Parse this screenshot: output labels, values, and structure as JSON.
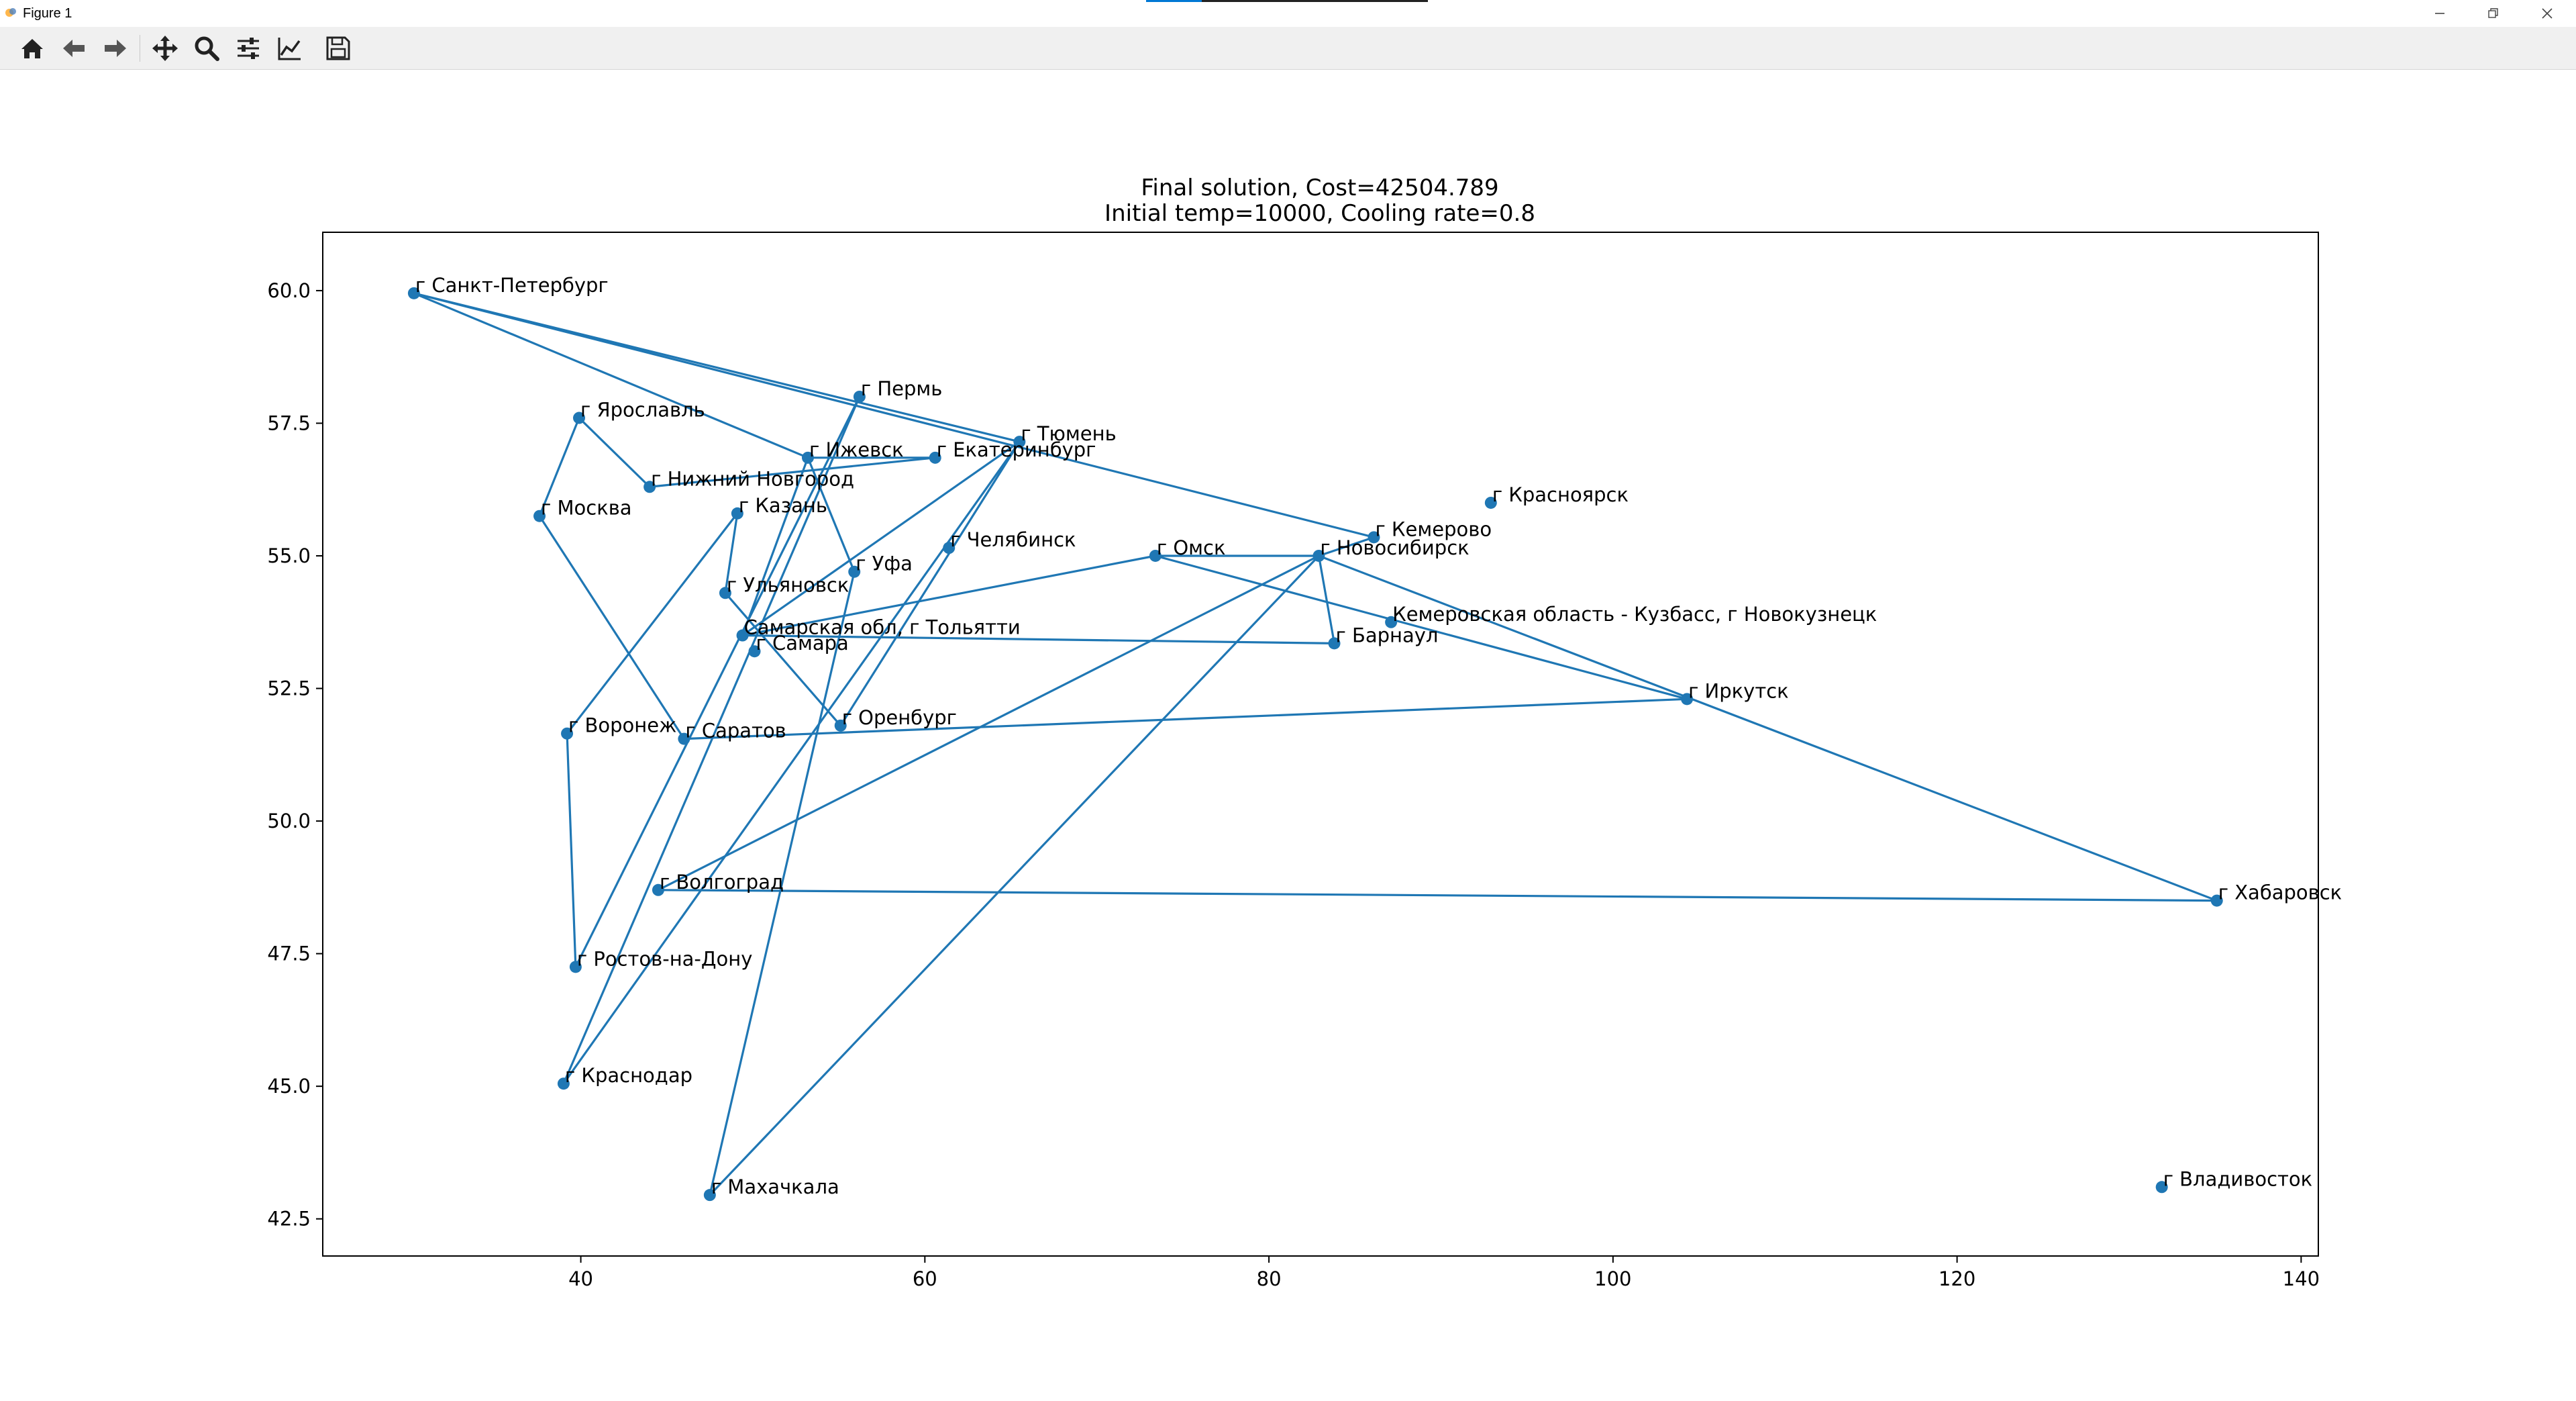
{
  "window": {
    "title": "Figure 1"
  },
  "toolbar": {
    "tools": [
      {
        "name": "home-icon"
      },
      {
        "name": "back-arrow-icon"
      },
      {
        "name": "forward-arrow-icon"
      },
      {
        "name": "pan-move-icon"
      },
      {
        "name": "zoom-magnifier-icon"
      },
      {
        "name": "configure-subplots-icon"
      },
      {
        "name": "edit-axis-icon"
      },
      {
        "name": "save-floppy-icon"
      }
    ]
  },
  "chart_data": {
    "type": "line",
    "title": "Final solution, Cost=42504.789",
    "subtitle": "Initial temp=10000, Cooling rate=0.8",
    "xlabel": "",
    "ylabel": "",
    "xlim": [
      25,
      141
    ],
    "ylim": [
      41.8,
      61.1
    ],
    "xticks": [
      40,
      60,
      80,
      100,
      120,
      140
    ],
    "yticks": [
      42.5,
      45.0,
      47.5,
      50.0,
      52.5,
      55.0,
      57.5,
      60.0
    ],
    "grid": false,
    "legend": "none",
    "color": "#1f77b4",
    "points": [
      {
        "name": "г Санкт-Петербург",
        "x": 30.3,
        "y": 59.95
      },
      {
        "name": "г Пермь",
        "x": 56.2,
        "y": 58.0
      },
      {
        "name": "г Ярославль",
        "x": 39.9,
        "y": 57.6
      },
      {
        "name": "г Ижевск",
        "x": 53.2,
        "y": 56.85
      },
      {
        "name": "г Екатеринбург",
        "x": 60.6,
        "y": 56.85
      },
      {
        "name": "г Тюмень",
        "x": 65.5,
        "y": 57.15
      },
      {
        "name": "г Нижний Новгород",
        "x": 44.0,
        "y": 56.3
      },
      {
        "name": "г Москва",
        "x": 37.6,
        "y": 55.75
      },
      {
        "name": "г Казань",
        "x": 49.1,
        "y": 55.8
      },
      {
        "name": "г Кемерово",
        "x": 86.1,
        "y": 55.35
      },
      {
        "name": "г Красноярск",
        "x": 92.9,
        "y": 56.0
      },
      {
        "name": "г Челябинск",
        "x": 61.4,
        "y": 55.15
      },
      {
        "name": "г Омск",
        "x": 73.4,
        "y": 55.0
      },
      {
        "name": "г Новосибирск",
        "x": 82.9,
        "y": 55.0
      },
      {
        "name": "г Уфа",
        "x": 55.9,
        "y": 54.7
      },
      {
        "name": "г Ульяновск",
        "x": 48.4,
        "y": 54.3
      },
      {
        "name": "Кемеровская область - Кузбасс, г Новокузнецк",
        "x": 87.1,
        "y": 53.75
      },
      {
        "name": "Самарская обл, г Тольятти",
        "x": 49.4,
        "y": 53.5
      },
      {
        "name": "г Барнаул",
        "x": 83.8,
        "y": 53.35
      },
      {
        "name": "г Самара",
        "x": 50.1,
        "y": 53.2
      },
      {
        "name": "г Иркутск",
        "x": 104.3,
        "y": 52.3
      },
      {
        "name": "г Оренбург",
        "x": 55.1,
        "y": 51.8
      },
      {
        "name": "г Воронеж",
        "x": 39.2,
        "y": 51.65
      },
      {
        "name": "г Саратов",
        "x": 46.0,
        "y": 51.55
      },
      {
        "name": "г Хабаровск",
        "x": 135.1,
        "y": 48.5
      },
      {
        "name": "г Волгоград",
        "x": 44.5,
        "y": 48.7
      },
      {
        "name": "г Ростов-на-Дону",
        "x": 39.7,
        "y": 47.25
      },
      {
        "name": "г Краснодар",
        "x": 39.0,
        "y": 45.05
      },
      {
        "name": "г Махачкала",
        "x": 47.5,
        "y": 42.95
      },
      {
        "name": "г Владивосток",
        "x": 131.9,
        "y": 43.1
      }
    ],
    "route": [
      "г Санкт-Петербург",
      "г Кемерово",
      "г Новосибирск",
      "г Волгоград",
      "г Хабаровск",
      "г Новосибирск",
      "г Барнаул",
      "Самарская обл, г Тольятти",
      "г Тюмень",
      "г Краснодар",
      "г Пермь",
      "г Ростов-на-Дону",
      "г Воронеж",
      "г Казань",
      "г Ульяновск",
      "г Оренбург",
      "г Тюмень",
      "г Санкт-Петербург",
      "г Ижевск",
      "г Уфа",
      "г Махачкала",
      "г Новосибирск",
      "г Омск",
      "Самарская обл, г Тольятти",
      "г Ижевск",
      "г Екатеринбург",
      "г Нижний Новгород",
      "г Ярославль",
      "г Москва",
      "г Саратов",
      "г Иркутск",
      "г Омск"
    ]
  }
}
